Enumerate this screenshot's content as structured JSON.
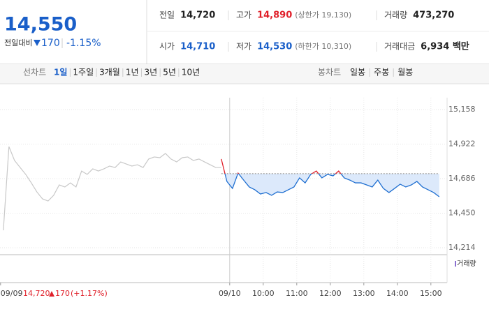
{
  "header": {
    "price": "14,550",
    "change_label": "전일대비",
    "change": "170",
    "change_rate": "-1.15%"
  },
  "stats": {
    "rows": [
      [
        {
          "label": "전일",
          "value": "14,720"
        },
        {
          "label": "고가",
          "value": "14,890",
          "extra": "(상한가 19,130)"
        },
        {
          "label": "거래량",
          "value": "473,270"
        }
      ],
      [
        {
          "label": "시가",
          "value": "14,710"
        },
        {
          "label": "저가",
          "value": "14,530",
          "extra": "(하한가 10,310)"
        },
        {
          "label": "거래대금",
          "value": "6,934 백만"
        }
      ]
    ]
  },
  "tabs": {
    "line_label": "선차트",
    "periods": [
      "1일",
      "1주일",
      "3개월",
      "1년",
      "3년",
      "5년",
      "10년"
    ],
    "candle_label": "봉차트",
    "candles": [
      "일봉",
      "주봉",
      "월봉"
    ]
  },
  "footer": {
    "price": "14,720",
    "change": "170",
    "change_rate": "(+1.17%)"
  },
  "chart_data": {
    "type": "line",
    "volume_label": "거래량",
    "baseline": 14720,
    "ylim": [
      14214,
      15158
    ],
    "yticks": [
      {
        "value": 15158,
        "label": "15,158"
      },
      {
        "value": 14922,
        "label": "14,922"
      },
      {
        "value": 14686,
        "label": "14,686"
      },
      {
        "value": 14450,
        "label": "14,450"
      },
      {
        "value": 14214,
        "label": "14,214"
      }
    ],
    "xlim": [
      -411,
      379
    ],
    "xticks": [
      {
        "value": -410,
        "label": "09/09"
      },
      {
        "value": 0,
        "label": "09/10"
      },
      {
        "value": 60,
        "label": "10:00"
      },
      {
        "value": 120,
        "label": "11:00"
      },
      {
        "value": 180,
        "label": "12:00"
      },
      {
        "value": 240,
        "label": "13:00"
      },
      {
        "value": 300,
        "label": "14:00"
      },
      {
        "value": 360,
        "label": "15:00"
      }
    ],
    "grid": true,
    "series": [
      {
        "color": "#c8c8c8",
        "x": [
          -405,
          -395,
          -385,
          -375,
          -365,
          -355,
          -345,
          -335,
          -325,
          -315,
          -305,
          -295,
          -285,
          -275,
          -265,
          -255,
          -245,
          -235,
          -225,
          -215,
          -205,
          -195,
          -185,
          -175,
          -165,
          -155,
          -145,
          -135,
          -125,
          -115,
          -105,
          -95,
          -85,
          -75,
          -65,
          -55,
          -45,
          -35,
          -25,
          -15
        ],
        "values": [
          14333,
          14905,
          14810,
          14762,
          14715,
          14657,
          14595,
          14548,
          14533,
          14572,
          14643,
          14629,
          14657,
          14629,
          14738,
          14715,
          14753,
          14738,
          14753,
          14772,
          14762,
          14800,
          14786,
          14772,
          14781,
          14762,
          14820,
          14834,
          14829,
          14858,
          14820,
          14800,
          14829,
          14834,
          14810,
          14820,
          14800,
          14781,
          14762,
          14762
        ]
      },
      {
        "color": "#1f6fd1",
        "color_up": "#e0202a",
        "x": [
          -15,
          -5,
          5,
          15,
          25,
          35,
          45,
          55,
          65,
          75,
          85,
          95,
          105,
          115,
          125,
          135,
          145,
          155,
          165,
          175,
          185,
          195,
          205,
          215,
          225,
          235,
          245,
          255,
          265,
          275,
          285,
          295,
          305,
          315,
          325,
          335,
          345,
          355,
          365,
          375
        ],
        "values": [
          14820,
          14667,
          14619,
          14724,
          14676,
          14629,
          14610,
          14581,
          14591,
          14572,
          14595,
          14591,
          14610,
          14629,
          14691,
          14657,
          14715,
          14738,
          14691,
          14715,
          14705,
          14738,
          14691,
          14676,
          14657,
          14657,
          14643,
          14629,
          14676,
          14619,
          14591,
          14619,
          14648,
          14629,
          14643,
          14667,
          14629,
          14610,
          14591,
          14562
        ]
      }
    ]
  }
}
